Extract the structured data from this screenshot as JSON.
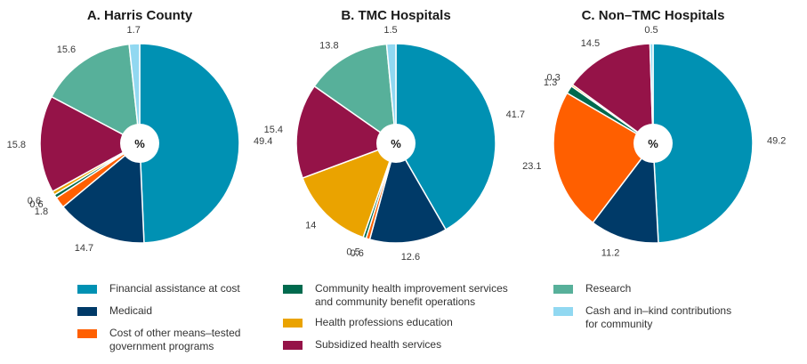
{
  "chart_data": [
    {
      "type": "pie",
      "title": "A. Harris County",
      "center_label": "%",
      "slices": [
        {
          "category": "Financial assistance at cost",
          "value": 49.4,
          "label": "49.4"
        },
        {
          "category": "Medicaid",
          "value": 14.7,
          "label": "14.7"
        },
        {
          "category": "Cost of other means-tested government programs",
          "value": 1.8,
          "label": "1.8"
        },
        {
          "category": "Community health improvement services and community benefit operations",
          "value": 0.6,
          "label": "0.6"
        },
        {
          "category": "Health professions education",
          "value": 0.6,
          "label": "0.6"
        },
        {
          "category": "Subsidized health services",
          "value": 15.8,
          "label": "15.8"
        },
        {
          "category": "Research",
          "value": 15.6,
          "label": "15.6"
        },
        {
          "category": "Cash and in-kind contributions for community",
          "value": 1.7,
          "label": "1.7"
        }
      ]
    },
    {
      "type": "pie",
      "title": "B. TMC Hospitals",
      "center_label": "%",
      "slices": [
        {
          "category": "Financial assistance at cost",
          "value": 41.7,
          "label": "41.7"
        },
        {
          "category": "Medicaid",
          "value": 12.6,
          "label": "12.6"
        },
        {
          "category": "Cost of other means-tested government programs",
          "value": 0.6,
          "label": "0.6"
        },
        {
          "category": "Community health improvement services and community benefit operations",
          "value": 0.5,
          "label": "0.5"
        },
        {
          "category": "Health professions education",
          "value": 14,
          "label": "14"
        },
        {
          "category": "Subsidized health services",
          "value": 15.4,
          "label": "15.4"
        },
        {
          "category": "Research",
          "value": 13.8,
          "label": "13.8"
        },
        {
          "category": "Cash and in-kind contributions for community",
          "value": 1.5,
          "label": "1.5"
        }
      ]
    },
    {
      "type": "pie",
      "title": "C. Non–TMC Hospitals",
      "center_label": "%",
      "slices": [
        {
          "category": "Financial assistance at cost",
          "value": 49.2,
          "label": "49.2"
        },
        {
          "category": "Medicaid",
          "value": 11.2,
          "label": "11.2"
        },
        {
          "category": "Cost of other means-tested government programs",
          "value": 23.1,
          "label": "23.1"
        },
        {
          "category": "Community health improvement services and community benefit operations",
          "value": 1.3,
          "label": "1.3"
        },
        {
          "category": "Health professions education",
          "value": 0.3,
          "label": "0.3"
        },
        {
          "category": "Subsidized health services",
          "value": 14.5,
          "label": "14.5"
        },
        {
          "category": "Research",
          "value": 0,
          "label": ""
        },
        {
          "category": "Cash and in-kind contributions for community",
          "value": 0.5,
          "label": "0.5"
        }
      ]
    }
  ],
  "legend": [
    {
      "label": "Financial assistance at cost",
      "color": "#0091b3"
    },
    {
      "label": "Medicaid",
      "color": "#003a68"
    },
    {
      "label": "Cost of other means–tested\ngovernment programs",
      "color": "#ff5f00"
    },
    {
      "label": "Community health improvement services\nand community benefit operations",
      "color": "#006a4e"
    },
    {
      "label": "Health professions education",
      "color": "#eaa300"
    },
    {
      "label": "Subsidized health services",
      "color": "#951348"
    },
    {
      "label": "Research",
      "color": "#57b09a"
    },
    {
      "label": "Cash and in–kind contributions\nfor community",
      "color": "#91d8f1"
    }
  ]
}
